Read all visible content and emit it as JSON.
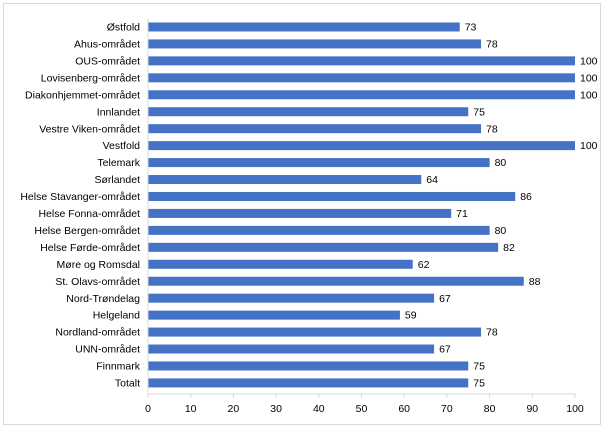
{
  "chart_data": {
    "type": "bar",
    "orientation": "horizontal",
    "categories": [
      "Østfold",
      "Ahus-området",
      "OUS-området",
      "Lovisenberg-området",
      "Diakonhjemmet-området",
      "Innlandet",
      "Vestre Viken-området",
      "Vestfold",
      "Telemark",
      "Sørlandet",
      "Helse Stavanger-området",
      "Helse Fonna-området",
      "Helse Bergen-området",
      "Helse Førde-området",
      "Møre og Romsdal",
      "St. Olavs-området",
      "Nord-Trøndelag",
      "Helgeland",
      "Nordland-området",
      "UNN-området",
      "Finnmark",
      "Totalt"
    ],
    "values": [
      73,
      78,
      100,
      100,
      100,
      75,
      78,
      100,
      80,
      64,
      86,
      71,
      80,
      82,
      62,
      88,
      67,
      59,
      78,
      67,
      75,
      75
    ],
    "xlim": [
      0,
      100
    ],
    "xticks": [
      "0",
      "10",
      "20",
      "30",
      "40",
      "50",
      "60",
      "70",
      "80",
      "90",
      "100"
    ],
    "bar_color": "#4472C4",
    "grid": false,
    "legend": "none",
    "title": "",
    "xlabel": "",
    "ylabel": ""
  }
}
